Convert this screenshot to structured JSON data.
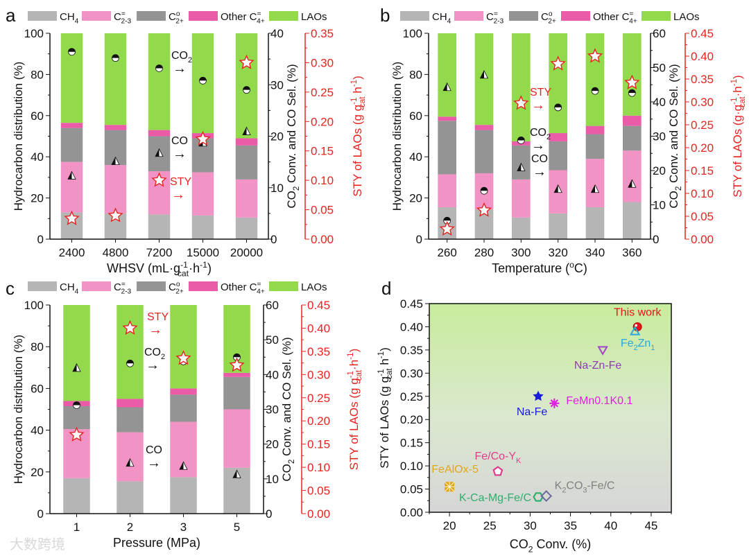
{
  "legend": [
    {
      "label": "CH_{4}",
      "color": "#b5b5b5"
    },
    {
      "label": "C^{=}_{2-3}",
      "color": "#f293c6"
    },
    {
      "label": "C^{o}_{2+}",
      "color": "#949494"
    },
    {
      "label": "Other C^{=}_{4+}",
      "color": "#ea5ba8"
    },
    {
      "label": "LAOs",
      "color": "#93d94c"
    }
  ],
  "watermark": "大数跨境",
  "chart_data": [
    {
      "panel": "a",
      "type": "bar",
      "stacked": true,
      "xlabel": "WHSV (mL·g^{-1}_{cat}·h^{-1})",
      "ylabel": "Hydrocarbon distribution (%)",
      "ylabel_right": "CO_{2} Conv. and CO Sel. (%)",
      "ylabel_right2": "STY of LAOs (g g^{-1}_{cat} h^{-1})",
      "ylim": [
        0,
        100
      ],
      "ylim_right": [
        0,
        40
      ],
      "ylim_right2": [
        0,
        0.35
      ],
      "yticks": [
        0,
        20,
        40,
        60,
        80,
        100
      ],
      "yticks_right": [
        0,
        10,
        20,
        30,
        40
      ],
      "yticks_right2": [
        "0.00",
        "0.05",
        "0.10",
        "0.15",
        "0.20",
        "0.25",
        "0.30",
        "0.35"
      ],
      "categories": [
        "2400",
        "4800",
        "7200",
        "15000",
        "20000"
      ],
      "series": [
        {
          "name": "CH4",
          "values": [
            13,
            12.5,
            12,
            11.5,
            10.5
          ]
        },
        {
          "name": "C2-3=",
          "values": [
            24.5,
            23.5,
            21,
            21,
            18.5
          ]
        },
        {
          "name": "C2+o",
          "values": [
            16.5,
            17,
            17,
            16.5,
            16.5
          ]
        },
        {
          "name": "Other C4+=",
          "values": [
            2.5,
            2.5,
            3,
            2.5,
            3.5
          ]
        },
        {
          "name": "LAOs",
          "values": [
            43.5,
            44.5,
            47,
            48.5,
            51
          ]
        }
      ],
      "co2_conversion": [
        36.4,
        35.2,
        33.2,
        30.8,
        29.0
      ],
      "co_selectivity": [
        12.4,
        15.2,
        16.8,
        18.8,
        21.0
      ],
      "sty_laos": [
        0.035,
        0.04,
        0.1,
        0.17,
        0.3
      ],
      "annotations": [
        {
          "text": "CO_{2}",
          "arrow": "→",
          "color": "#111111"
        },
        {
          "text": "CO",
          "arrow": "→",
          "color": "#111111"
        },
        {
          "text": "STY",
          "arrow": "→",
          "color": "#e8231f"
        }
      ]
    },
    {
      "panel": "b",
      "type": "bar",
      "stacked": true,
      "xlabel": "Temperature (^{o}C)",
      "ylabel": "Hydrocarbon distribution (%)",
      "ylabel_right": "CO_{2} Conv. and CO Sel. (%)",
      "ylabel_right2": "STY of LAOs (g·g^{-1}_{cat}·h^{-1})",
      "ylim": [
        0,
        100
      ],
      "ylim_right": [
        0,
        60
      ],
      "ylim_right2": [
        0,
        0.45
      ],
      "yticks": [
        0,
        20,
        40,
        60,
        80,
        100
      ],
      "yticks_right": [
        0,
        10,
        20,
        30,
        40,
        50,
        60
      ],
      "yticks_right2": [
        "0.00",
        "0.05",
        "0.10",
        "0.15",
        "0.20",
        "0.25",
        "0.30",
        "0.35",
        "0.40",
        "0.45"
      ],
      "categories": [
        "260",
        "280",
        "300",
        "320",
        "340",
        "360"
      ],
      "series": [
        {
          "name": "CH4",
          "values": [
            15.5,
            14.5,
            10.5,
            12.5,
            15.5,
            18
          ]
        },
        {
          "name": "C2-3=",
          "values": [
            16,
            17.5,
            18.5,
            21,
            23.5,
            25
          ]
        },
        {
          "name": "C2+o",
          "values": [
            26,
            21,
            16.5,
            14,
            12,
            12
          ]
        },
        {
          "name": "Other C4+=",
          "values": [
            2,
            2.5,
            2,
            4,
            4,
            5
          ]
        },
        {
          "name": "LAOs",
          "values": [
            40.5,
            44.5,
            52.5,
            48.5,
            45,
            40
          ]
        }
      ],
      "co2_conversion": [
        5.4,
        14.1,
        28.8,
        38.4,
        43.2,
        42.6
      ],
      "co_selectivity": [
        44.4,
        48.0,
        21.0,
        14.7,
        14.7,
        16.2
      ],
      "sty_laos": [
        0.022,
        0.063,
        0.297,
        0.383,
        0.4,
        0.342
      ],
      "annotations": [
        {
          "text": "STY",
          "arrow": "→",
          "color": "#e8231f"
        },
        {
          "text": "CO_{2}",
          "arrow": "→",
          "color": "#111111"
        },
        {
          "text": "CO",
          "arrow": "→",
          "color": "#111111"
        }
      ]
    },
    {
      "panel": "c",
      "type": "bar",
      "stacked": true,
      "xlabel": "Pressure (MPa)",
      "ylabel": "Hydrocarbon distribution (%)",
      "ylabel_right": "CO_{2} Conv. and CO Sel. (%)",
      "ylabel_right2": "STY of LAOs (g g^{-1}_{cat}·h^{-1})",
      "ylim": [
        0,
        100
      ],
      "ylim_right": [
        0,
        60
      ],
      "ylim_right2": [
        0,
        0.45
      ],
      "yticks": [
        0,
        20,
        40,
        60,
        80,
        100
      ],
      "yticks_right": [
        0,
        10,
        20,
        30,
        40,
        50,
        60
      ],
      "yticks_right2": [
        "0.00",
        "0.05",
        "0.10",
        "0.15",
        "0.20",
        "0.25",
        "0.30",
        "0.35",
        "0.40",
        "0.45"
      ],
      "categories": [
        "1",
        "2",
        "3",
        "5"
      ],
      "series": [
        {
          "name": "CH4",
          "values": [
            17,
            15.5,
            17.5,
            22
          ]
        },
        {
          "name": "C2-3=",
          "values": [
            23.5,
            23.5,
            26.5,
            28
          ]
        },
        {
          "name": "C2+o",
          "values": [
            11,
            12,
            13,
            15.5
          ]
        },
        {
          "name": "Other C4+=",
          "values": [
            2.5,
            4,
            3,
            2
          ]
        },
        {
          "name": "LAOs",
          "values": [
            46,
            45,
            40,
            32.5
          ]
        }
      ],
      "co2_conversion": [
        31.2,
        43.2,
        43.8,
        45.0
      ],
      "co_selectivity": [
        42.0,
        14.7,
        13.8,
        11.4
      ],
      "sty_laos": [
        0.17,
        0.4,
        0.335,
        0.32
      ],
      "annotations": [
        {
          "text": "STY",
          "arrow": "→",
          "color": "#e8231f"
        },
        {
          "text": "CO_{2}",
          "arrow": "→",
          "color": "#111111"
        },
        {
          "text": "CO",
          "arrow": "→",
          "color": "#111111"
        }
      ]
    },
    {
      "panel": "d",
      "type": "scatter",
      "xlabel": "CO_{2} Conv. (%)",
      "ylabel": "STY of LAOs (g g^{-1}_{cat} h^{-1})",
      "xlim": [
        17.5,
        47.5
      ],
      "ylim": [
        0,
        0.45
      ],
      "xticks": [
        "20",
        "25",
        "30",
        "35",
        "40",
        "45"
      ],
      "yticks": [
        "0.00",
        "0.05",
        "0.10",
        "0.15",
        "0.20",
        "0.25",
        "0.30",
        "0.35",
        "0.40",
        "0.45"
      ],
      "points": [
        {
          "label": "This work",
          "x": 43.3,
          "y": 0.4,
          "marker": "circle-filled",
          "color": "#e8141c"
        },
        {
          "label": "Fe_{2}Zn_{1}",
          "x": 43.0,
          "y": 0.39,
          "marker": "triangle-up",
          "color": "#2aa7df"
        },
        {
          "label": "Na-Zn-Fe",
          "x": 39.0,
          "y": 0.35,
          "marker": "triangle-down",
          "color": "#a044cc"
        },
        {
          "label": "Na-Fe",
          "x": 31.0,
          "y": 0.25,
          "marker": "star",
          "color": "#1a1adb"
        },
        {
          "label": "FeMn0.1K0.1",
          "x": 33.0,
          "y": 0.235,
          "marker": "asterisk",
          "color": "#e020e0"
        },
        {
          "label": "Fe/Co-Y_{K}",
          "x": 26.0,
          "y": 0.088,
          "marker": "pentagon",
          "color": "#e03c8c"
        },
        {
          "label": "FeAlOx-5",
          "x": 20.0,
          "y": 0.055,
          "marker": "cross-square",
          "color": "#e0a81a"
        },
        {
          "label": "K-Ca-Mg-Fe/C",
          "x": 31.0,
          "y": 0.033,
          "marker": "hexagon",
          "color": "#2fae6e"
        },
        {
          "label": "K_{2}CO_{3}-Fe/C",
          "x": 32.0,
          "y": 0.035,
          "marker": "diamond",
          "color": "#6a6a9e"
        }
      ]
    }
  ]
}
